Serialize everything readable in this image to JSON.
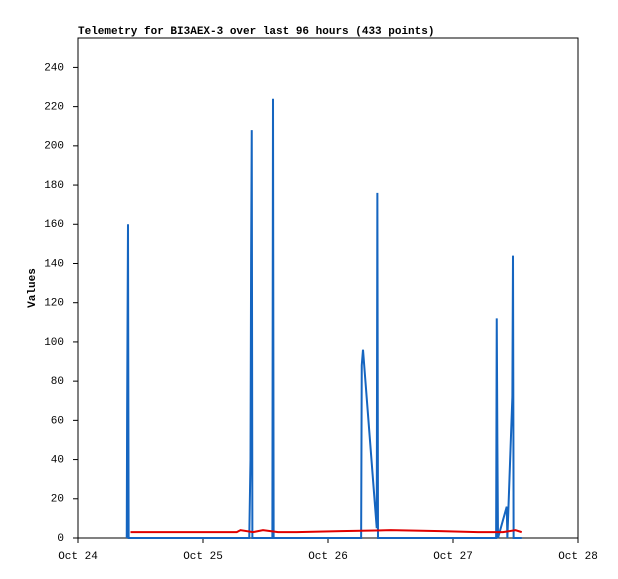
{
  "chart_data": {
    "type": "line",
    "title": "Telemetry for BI3AEX-3 over last 96 hours (433 points)",
    "y_label": "Values",
    "xlim": [
      24,
      28
    ],
    "xticks": [
      {
        "value": 24,
        "label": "Oct 24"
      },
      {
        "value": 25,
        "label": "Oct 25"
      },
      {
        "value": 26,
        "label": "Oct 26"
      },
      {
        "value": 27,
        "label": "Oct 27"
      },
      {
        "value": 28,
        "label": "Oct 28"
      }
    ],
    "ylim": [
      0,
      255
    ],
    "yticks": [
      0,
      20,
      40,
      60,
      80,
      100,
      120,
      140,
      160,
      180,
      200,
      220,
      240
    ],
    "series": [
      {
        "color": "#1565c0",
        "x": [
          24.39,
          24.393,
          24.4,
          24.405,
          25.37,
          25.38,
          25.385,
          25.39,
          25.395,
          25.555,
          25.56,
          25.565,
          26.265,
          26.27,
          26.28,
          26.39,
          26.395,
          26.4,
          27.345,
          27.35,
          27.355,
          27.36,
          27.43,
          27.435,
          27.475,
          27.48,
          27.485,
          27.55
        ],
        "values": [
          0,
          64,
          160,
          0,
          0,
          40,
          144,
          208,
          0,
          0,
          224,
          0,
          0,
          88,
          96,
          5,
          176,
          0,
          0,
          112,
          48,
          0,
          16,
          0,
          72,
          144,
          0,
          0
        ]
      },
      {
        "color": "#e00000",
        "x": [
          24.42,
          24.6,
          24.9,
          25.27,
          25.3,
          25.4,
          25.48,
          25.6,
          25.75,
          26.1,
          26.5,
          26.9,
          27.2,
          27.4,
          27.5,
          27.55
        ],
        "values": [
          3,
          3,
          3,
          3,
          4,
          3,
          4,
          3,
          3,
          3.5,
          4,
          3.5,
          3,
          3,
          4,
          3
        ]
      }
    ]
  }
}
